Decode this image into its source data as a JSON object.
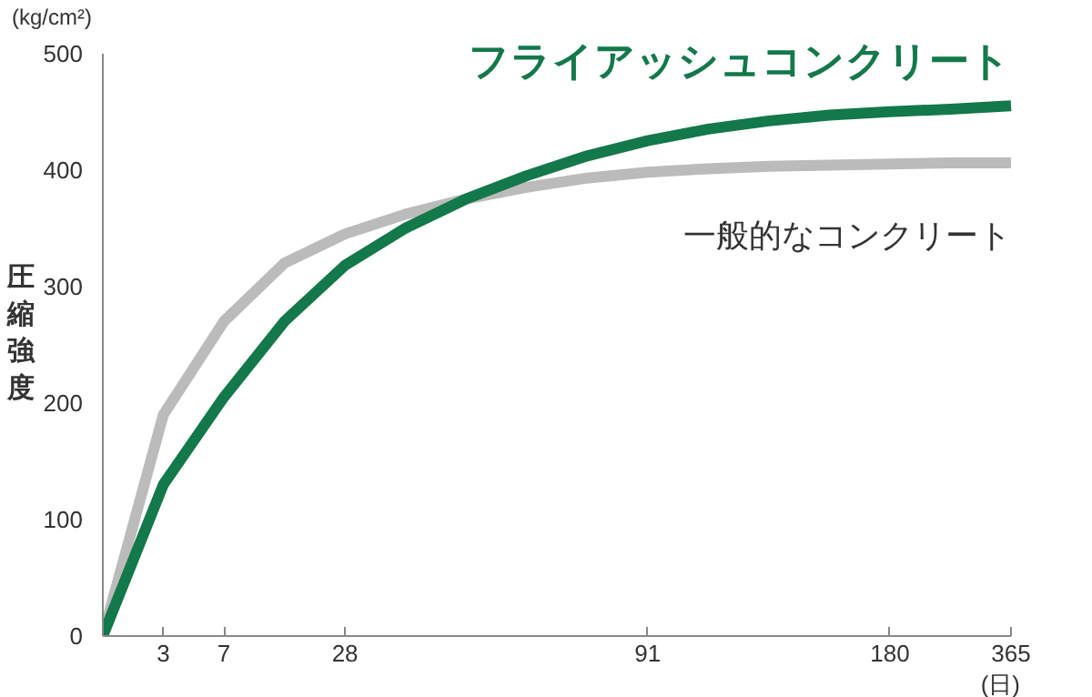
{
  "chart_data": {
    "type": "line",
    "ylabel": "圧縮強度",
    "categories": [
      null,
      "3",
      "7",
      null,
      "28",
      null,
      null,
      null,
      null,
      "91",
      null,
      null,
      null,
      "180",
      null,
      "365"
    ],
    "series": [
      {
        "name": "一般的なコンクリート",
        "color": "#bbbbbb",
        "values": [
          0,
          190,
          270,
          320,
          345,
          362,
          375,
          385,
          393,
          398,
          401,
          403,
          404,
          405,
          406,
          406
        ]
      },
      {
        "name": "フライアッシュコンクリート",
        "color": "#13784a",
        "values": [
          0,
          130,
          205,
          270,
          318,
          350,
          375,
          395,
          412,
          425,
          435,
          442,
          447,
          450,
          452,
          455
        ]
      }
    ],
    "ylim": [
      0,
      500
    ],
    "yticks": [
      0,
      100,
      200,
      300,
      400,
      500
    ],
    "grid": false,
    "marker": "none",
    "line_style": "solid",
    "annotations": [
      "(kg/cm²)",
      "(日)"
    ]
  }
}
